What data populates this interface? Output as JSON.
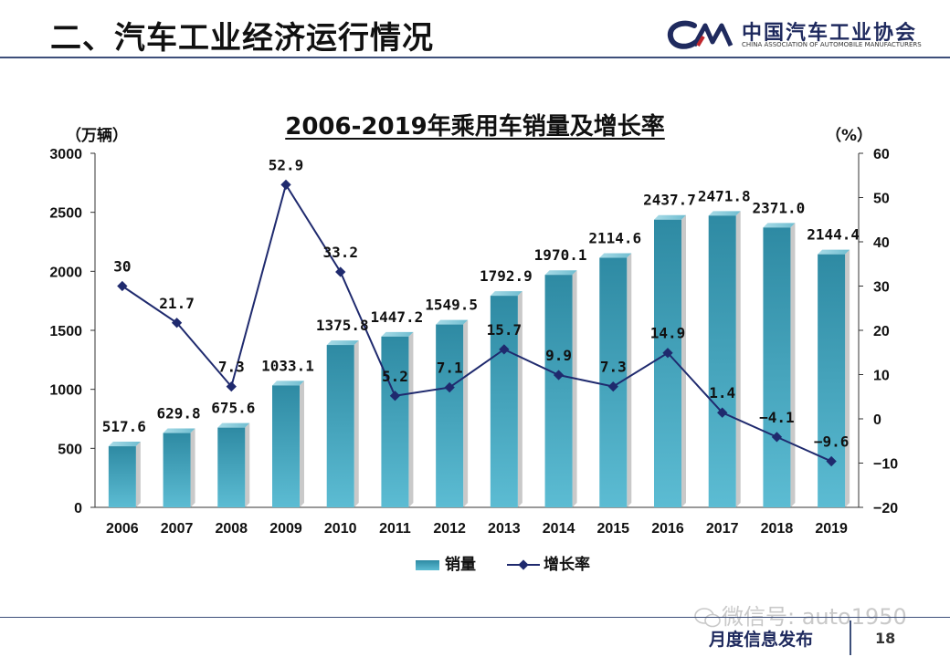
{
  "header": {
    "slide_title": "二、汽车工业经济运行情况",
    "org_name_cn": "中国汽车工业协会",
    "org_name_en": "CHINA ASSOCIATION OF AUTOMOBILE MANUFACTURERS"
  },
  "footer": {
    "label": "月度信息发布",
    "page_number": "18",
    "watermark": "微信号: auto1950"
  },
  "colors": {
    "bar_top": "#2e8aa3",
    "bar_bottom": "#5cbcd3",
    "line": "#1f2a6e",
    "accent": "#1f2a5e"
  },
  "chart_data": {
    "type": "bar",
    "title": "2006-2019年乘用车销量及增长率",
    "ylabel": "（万辆）",
    "y2label": "（%）",
    "categories": [
      "2006",
      "2007",
      "2008",
      "2009",
      "2010",
      "2011",
      "2012",
      "2013",
      "2014",
      "2015",
      "2016",
      "2017",
      "2018",
      "2019"
    ],
    "series": [
      {
        "name": "销量",
        "type": "bar",
        "axis": "left",
        "values": [
          517.6,
          629.8,
          675.6,
          1033.1,
          1375.8,
          1447.2,
          1549.5,
          1792.9,
          1970.1,
          2114.6,
          2437.7,
          2471.8,
          2371.0,
          2144.4
        ],
        "labels": [
          "517.6",
          "629.8",
          "675.6",
          "1033.1",
          "1375.8",
          "1447.2",
          "1549.5",
          "1792.9",
          "1970.1",
          "2114.6",
          "2437.7",
          "2471.8",
          "2371.0",
          "2144.4"
        ]
      },
      {
        "name": "增长率",
        "type": "line",
        "axis": "right",
        "values": [
          30,
          21.7,
          7.3,
          52.9,
          33.2,
          5.2,
          7.1,
          15.7,
          9.9,
          7.3,
          14.9,
          1.4,
          -4.1,
          -9.6
        ],
        "labels": [
          "30",
          "21.7",
          "7.3",
          "52.9",
          "33.2",
          "5.2",
          "7.1",
          "15.7",
          "9.9",
          "7.3",
          "14.9",
          "1.4",
          "−4.1",
          "−9.6"
        ]
      }
    ],
    "ylim": [
      0,
      3000
    ],
    "yticks": [
      "0",
      "500",
      "1000",
      "1500",
      "2000",
      "2500",
      "3000"
    ],
    "y2lim": [
      -20,
      60
    ],
    "y2ticks": [
      "−20",
      "−10",
      "0",
      "10",
      "20",
      "30",
      "40",
      "50",
      "60"
    ],
    "grid": false,
    "legend": "bottom"
  }
}
